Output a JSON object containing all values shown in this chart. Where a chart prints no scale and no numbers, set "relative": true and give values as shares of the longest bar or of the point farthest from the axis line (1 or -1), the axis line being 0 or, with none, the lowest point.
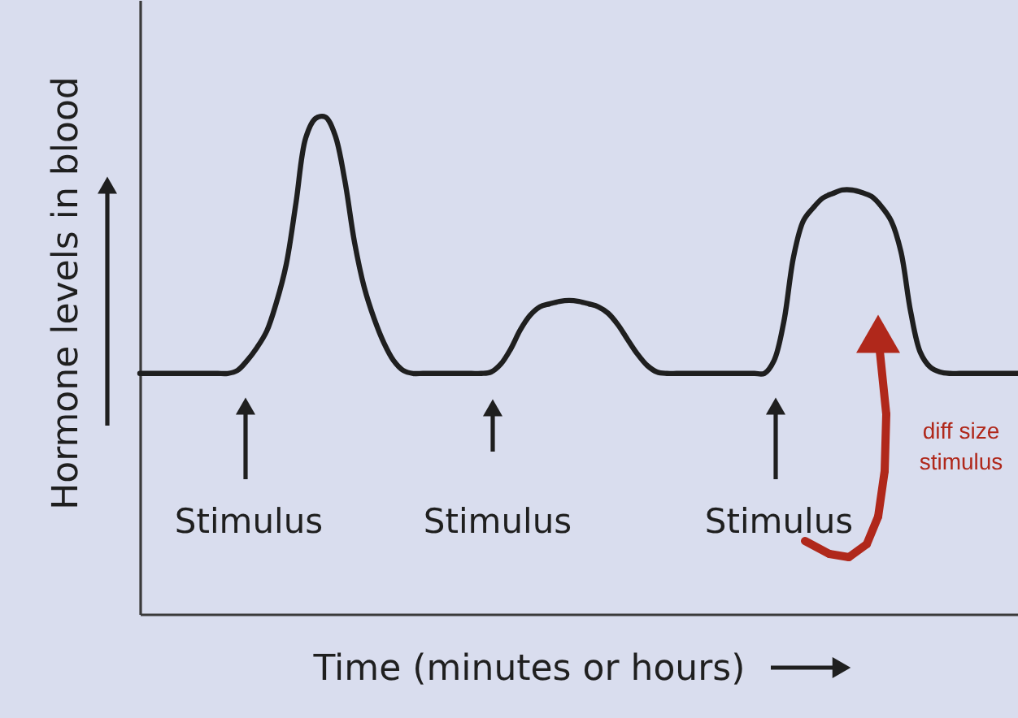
{
  "chart_data": {
    "type": "line",
    "relative": true,
    "xlabel": "Time (minutes or hours)",
    "ylabel": "Hormone levels in blood",
    "categories": [
      null,
      null,
      null,
      null,
      null,
      null,
      null,
      null,
      null,
      null,
      null,
      null,
      null,
      null,
      null,
      null,
      null,
      null,
      null,
      null,
      null,
      null,
      null,
      null,
      null,
      null,
      null,
      null,
      null,
      null,
      null,
      null,
      null,
      null,
      null,
      null,
      null,
      null,
      null,
      null,
      null,
      null,
      null,
      null,
      null,
      null,
      null,
      null,
      null,
      null,
      null,
      null,
      null,
      null,
      null,
      null,
      null,
      null,
      null,
      null,
      null,
      null,
      null,
      null,
      null,
      null,
      null,
      null,
      null,
      null,
      null,
      null,
      null,
      null,
      null,
      null,
      null,
      null,
      null,
      null,
      null,
      null,
      null,
      null,
      null,
      null,
      null,
      null,
      null,
      null,
      null
    ],
    "series": [
      {
        "color": "#1f1f1f",
        "values": [
          0.484,
          0.484,
          0.484,
          0.484,
          0.484,
          0.484,
          0.484,
          0.484,
          0.484,
          0.484,
          0.49,
          0.51,
          0.536,
          0.569,
          0.627,
          0.703,
          0.827,
          0.958,
          0.997,
          1.0,
          0.964,
          0.873,
          0.748,
          0.657,
          0.595,
          0.546,
          0.51,
          0.49,
          0.484,
          0.484,
          0.484,
          0.484,
          0.484,
          0.484,
          0.484,
          0.484,
          0.487,
          0.503,
          0.533,
          0.572,
          0.601,
          0.618,
          0.624,
          0.629,
          0.631,
          0.629,
          0.624,
          0.618,
          0.605,
          0.582,
          0.552,
          0.523,
          0.5,
          0.487,
          0.484,
          0.484,
          0.484,
          0.484,
          0.484,
          0.484,
          0.484,
          0.484,
          0.484,
          0.484,
          0.484,
          0.51,
          0.588,
          0.719,
          0.791,
          0.817,
          0.837,
          0.846,
          0.853,
          0.853,
          0.848,
          0.84,
          0.82,
          0.791,
          0.729,
          0.608,
          0.526,
          0.497,
          0.487,
          0.484,
          0.484,
          0.484,
          0.484,
          0.484,
          0.484,
          0.484,
          0.484
        ]
      }
    ],
    "annotations": [
      "Stimulus",
      "Stimulus",
      "Stimulus",
      "diff size\nstimulus"
    ]
  }
}
